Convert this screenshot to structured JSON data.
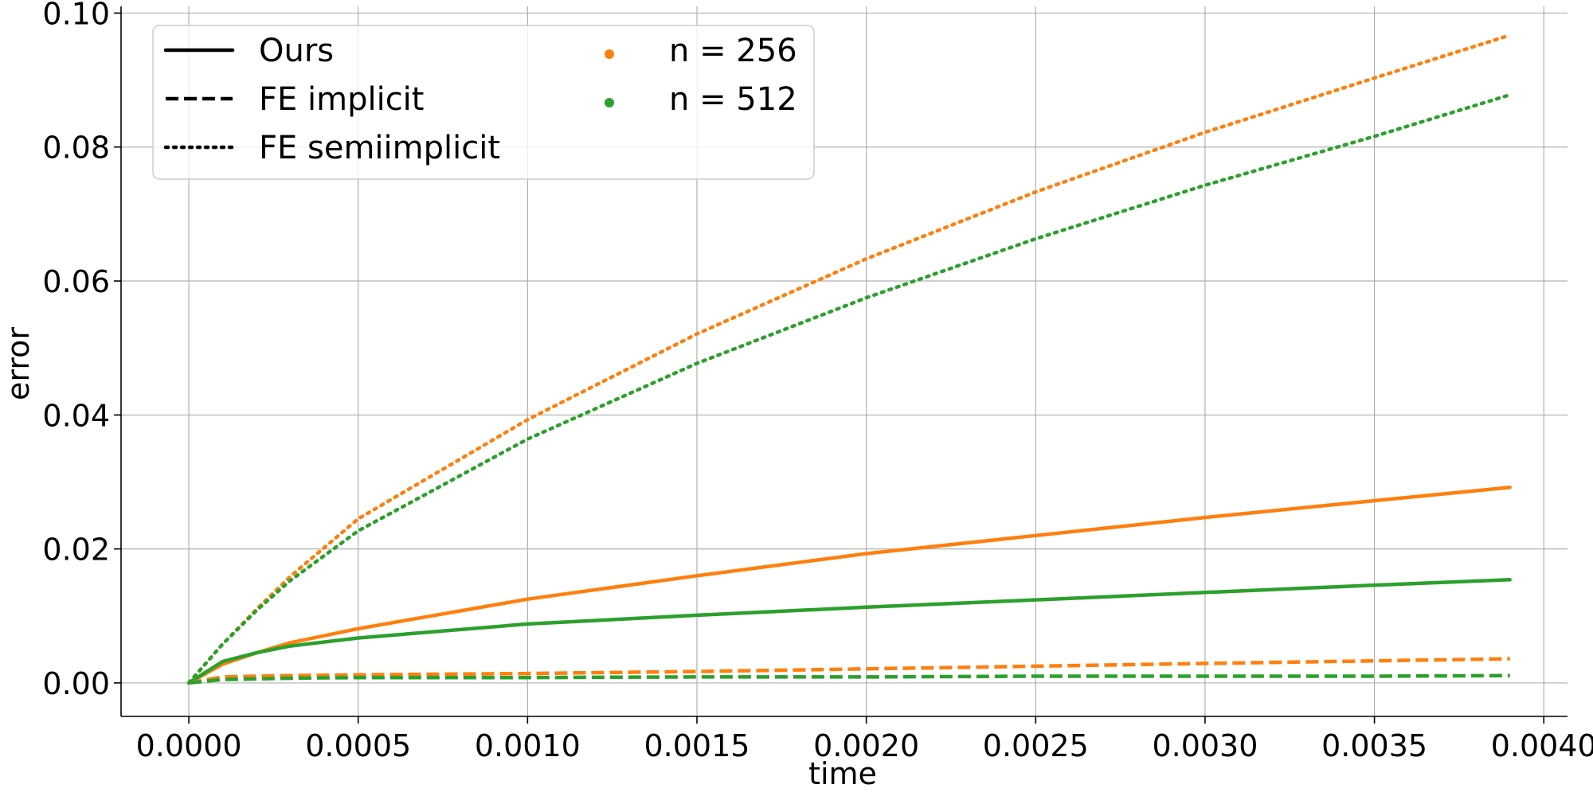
{
  "chart_data": {
    "type": "line",
    "title": "",
    "xlabel": "time",
    "ylabel": "error",
    "xlim": [
      -0.0002,
      0.00407
    ],
    "ylim": [
      -0.005,
      0.101
    ],
    "xticks": [
      0.0,
      0.0005,
      0.001,
      0.0015,
      0.002,
      0.0025,
      0.003,
      0.0035,
      0.004
    ],
    "xtick_labels": [
      "0.0000",
      "0.0005",
      "0.0010",
      "0.0015",
      "0.0020",
      "0.0025",
      "0.0030",
      "0.0035",
      "0.0040"
    ],
    "yticks": [
      0.0,
      0.02,
      0.04,
      0.06,
      0.08,
      0.1
    ],
    "ytick_labels": [
      "0.00",
      "0.02",
      "0.04",
      "0.06",
      "0.08",
      "0.10"
    ],
    "grid": true,
    "legend_position": "top-left",
    "colors": {
      "n256": "#ff7f0e",
      "n512": "#2ca02c"
    },
    "legend": {
      "styles": [
        {
          "label": "Ours",
          "dash": "solid"
        },
        {
          "label": "FE implicit",
          "dash": "dashed"
        },
        {
          "label": "FE semiimplicit",
          "dash": "dotted"
        }
      ],
      "resolutions": [
        {
          "label": "n = 256",
          "color": "#ff7f0e"
        },
        {
          "label": "n = 512",
          "color": "#2ca02c"
        }
      ]
    },
    "x": [
      0.0,
      0.0001,
      0.0002,
      0.0003,
      0.0005,
      0.001,
      0.0015,
      0.002,
      0.0025,
      0.003,
      0.0035,
      0.0039
    ],
    "series": [
      {
        "method": "Ours",
        "resolution": "n = 256",
        "color": "#ff7f0e",
        "dash": "solid",
        "values": [
          0.0,
          0.0028,
          0.0045,
          0.006,
          0.0081,
          0.0125,
          0.016,
          0.0193,
          0.022,
          0.0247,
          0.0272,
          0.0292
        ]
      },
      {
        "method": "Ours",
        "resolution": "n = 512",
        "color": "#2ca02c",
        "dash": "solid",
        "values": [
          0.0,
          0.0032,
          0.0045,
          0.0055,
          0.0067,
          0.0088,
          0.0101,
          0.0113,
          0.0124,
          0.0135,
          0.0146,
          0.0154
        ]
      },
      {
        "method": "FE implicit",
        "resolution": "n = 256",
        "color": "#ff7f0e",
        "dash": "dashed",
        "values": [
          0.0,
          0.0009,
          0.001,
          0.0011,
          0.0012,
          0.0014,
          0.0017,
          0.0021,
          0.0025,
          0.0029,
          0.0033,
          0.0036
        ]
      },
      {
        "method": "FE implicit",
        "resolution": "n = 512",
        "color": "#2ca02c",
        "dash": "dashed",
        "values": [
          0.0,
          0.0005,
          0.0006,
          0.0007,
          0.0008,
          0.0008,
          0.0009,
          0.0009,
          0.001,
          0.001,
          0.001,
          0.0011
        ]
      },
      {
        "method": "FE semiimplicit",
        "resolution": "n = 256",
        "color": "#ff7f0e",
        "dash": "dotted",
        "values": [
          0.0,
          0.0058,
          0.011,
          0.0159,
          0.0245,
          0.0393,
          0.0521,
          0.0633,
          0.0733,
          0.0822,
          0.0903,
          0.0967
        ]
      },
      {
        "method": "FE semiimplicit",
        "resolution": "n = 512",
        "color": "#2ca02c",
        "dash": "dotted",
        "values": [
          0.0,
          0.0058,
          0.0108,
          0.0153,
          0.0227,
          0.0364,
          0.0477,
          0.0575,
          0.0663,
          0.0743,
          0.0816,
          0.0878
        ]
      }
    ]
  }
}
